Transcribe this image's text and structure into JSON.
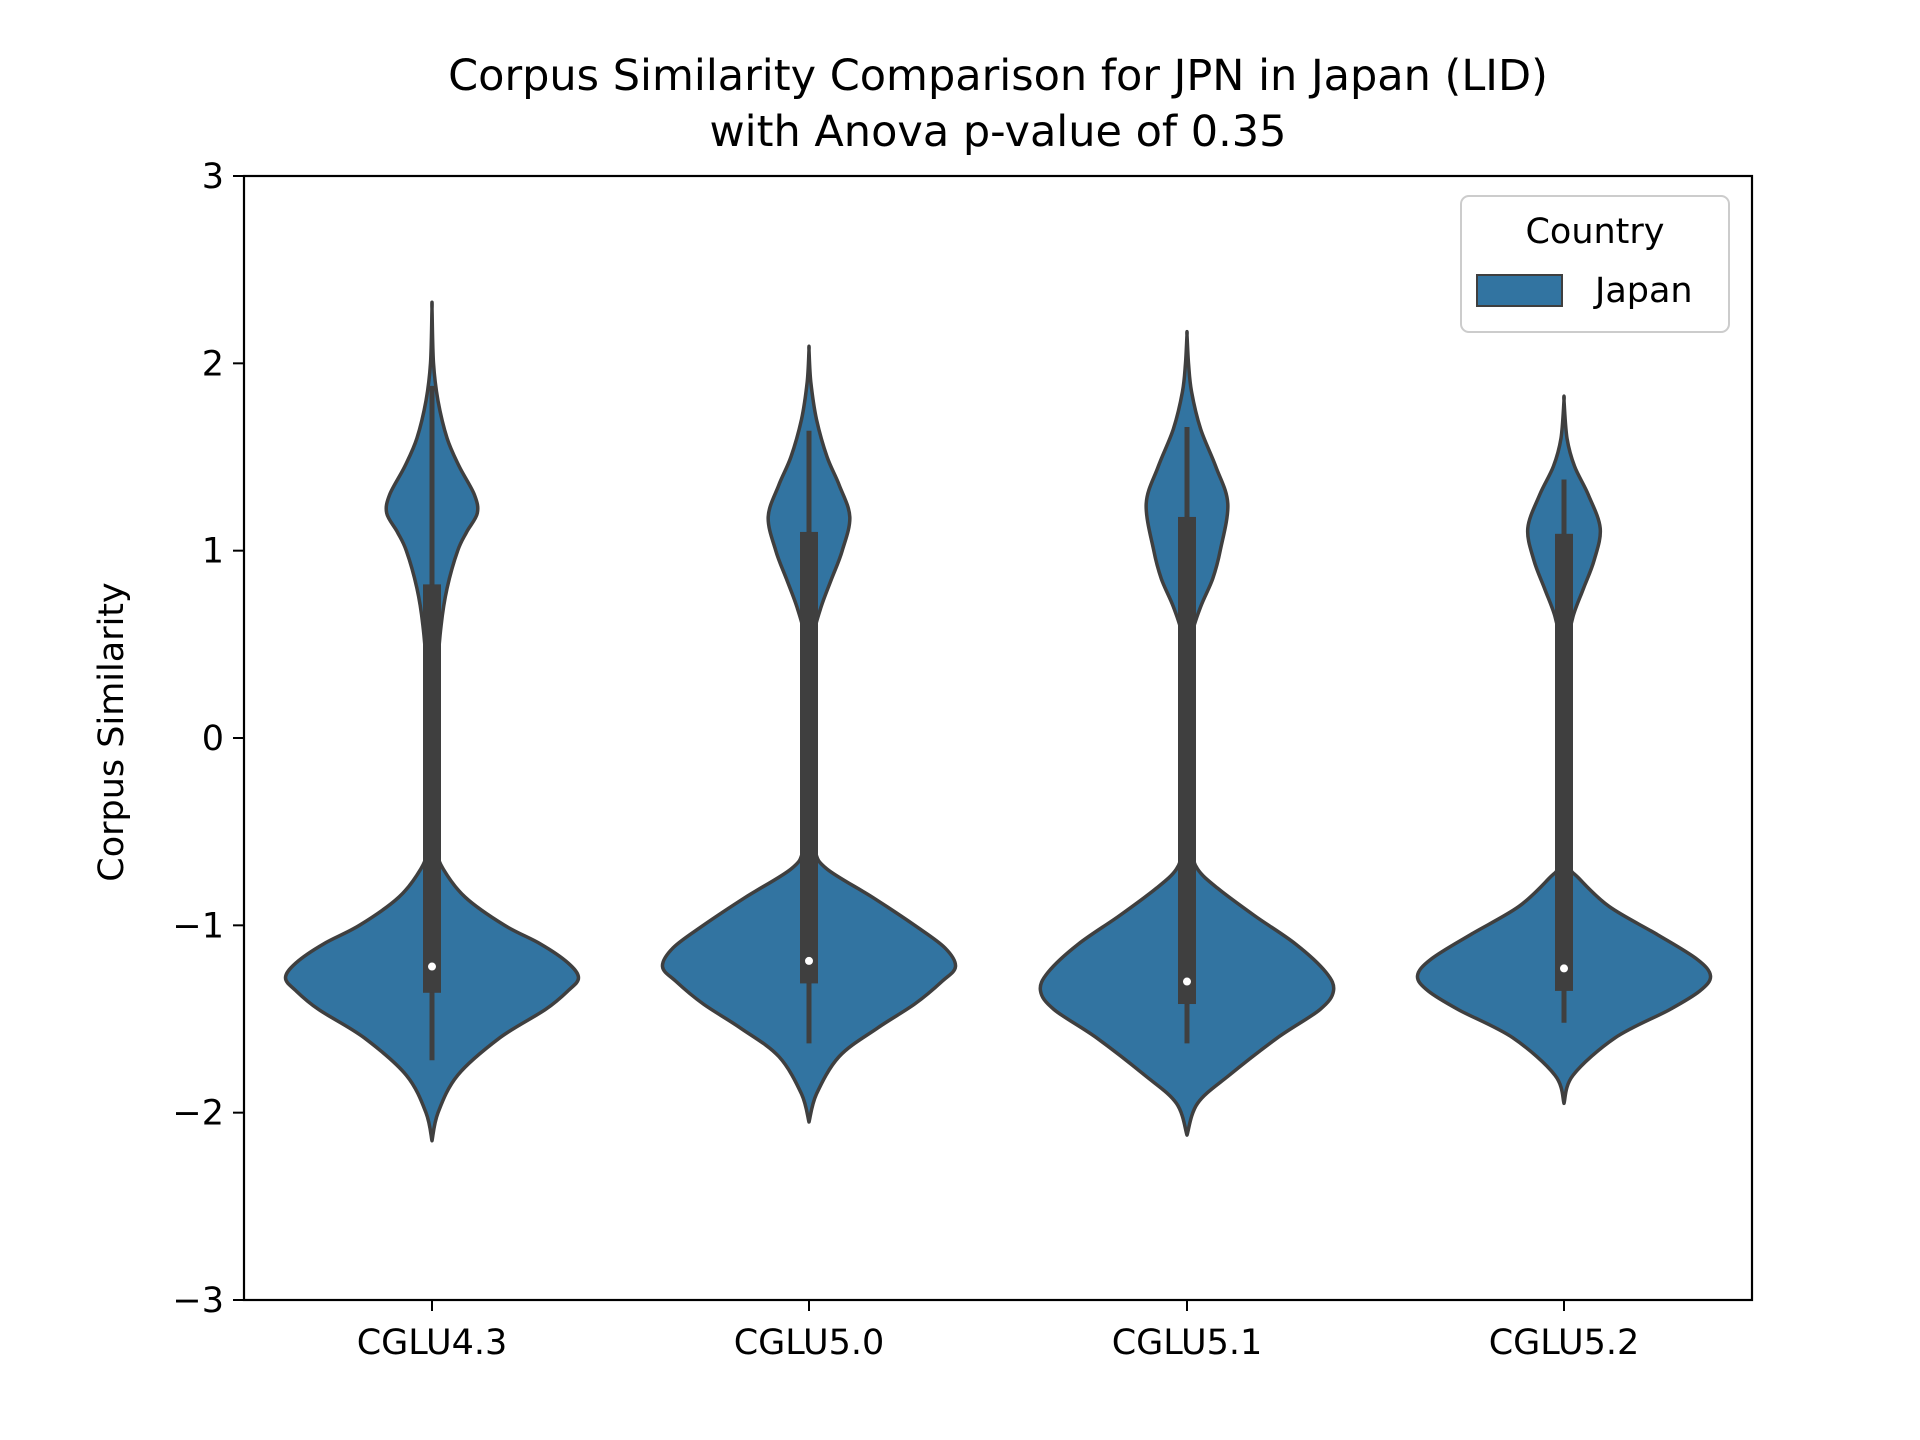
{
  "chart_data": {
    "type": "violin",
    "title_lines": [
      "Corpus Similarity Comparison for JPN in Japan (LID)",
      "with Anova p-value of 0.35"
    ],
    "xlabel": "",
    "ylabel": "Corpus Similarity",
    "ylim": [
      -3,
      3
    ],
    "yticks": [
      -3,
      -2,
      -1,
      0,
      1,
      2,
      3
    ],
    "ytick_labels": [
      "−3",
      "−2",
      "−1",
      "0",
      "1",
      "2",
      "3"
    ],
    "categories": [
      "CGLU4.3",
      "CGLU5.0",
      "CGLU5.1",
      "CGLU5.2"
    ],
    "legend": {
      "title": "Country",
      "entries": [
        {
          "label": "Japan",
          "color": "#3274a1"
        }
      ],
      "position": "top-right"
    },
    "violin_color": "#3274a1",
    "edge_color": "#3f3f3f",
    "violins": [
      {
        "category": "CGLU4.3",
        "density_y": [
          -2.15,
          -2.0,
          -1.8,
          -1.6,
          -1.45,
          -1.35,
          -1.28,
          -1.2,
          -1.1,
          -1.0,
          -0.85,
          -0.7,
          -0.6,
          -0.4,
          -0.2,
          0.0,
          0.3,
          0.6,
          0.8,
          1.0,
          1.1,
          1.2,
          1.3,
          1.45,
          1.6,
          1.8,
          2.0,
          2.29
        ],
        "density_hw": [
          0.0,
          0.04,
          0.17,
          0.45,
          0.75,
          0.9,
          0.97,
          0.9,
          0.72,
          0.48,
          0.22,
          0.075,
          0.035,
          0.025,
          0.024,
          0.024,
          0.03,
          0.06,
          0.1,
          0.17,
          0.23,
          0.3,
          0.28,
          0.18,
          0.1,
          0.04,
          0.01,
          0.0
        ],
        "whisker": [
          -1.72,
          1.88
        ],
        "q1": -1.36,
        "q3": 0.82,
        "median": -1.22
      },
      {
        "category": "CGLU5.0",
        "density_y": [
          -2.05,
          -1.9,
          -1.7,
          -1.55,
          -1.42,
          -1.3,
          -1.22,
          -1.12,
          -1.0,
          -0.85,
          -0.7,
          -0.6,
          -0.4,
          -0.2,
          0.0,
          0.2,
          0.4,
          0.55,
          0.7,
          0.85,
          1.0,
          1.18,
          1.35,
          1.5,
          1.7,
          1.9,
          2.07
        ],
        "density_hw": [
          0.0,
          0.05,
          0.2,
          0.45,
          0.7,
          0.88,
          0.97,
          0.9,
          0.7,
          0.42,
          0.12,
          0.04,
          0.025,
          0.022,
          0.022,
          0.022,
          0.024,
          0.03,
          0.08,
          0.15,
          0.22,
          0.27,
          0.2,
          0.12,
          0.05,
          0.012,
          0.0
        ],
        "whisker": [
          -1.63,
          1.64
        ],
        "q1": -1.31,
        "q3": 1.1,
        "median": -1.19
      },
      {
        "category": "CGLU5.1",
        "density_y": [
          -2.12,
          -1.95,
          -1.8,
          -1.6,
          -1.45,
          -1.35,
          -1.25,
          -1.1,
          -0.95,
          -0.8,
          -0.7,
          -0.6,
          -0.4,
          -0.2,
          0.0,
          0.2,
          0.4,
          0.55,
          0.7,
          0.85,
          1.0,
          1.25,
          1.45,
          1.65,
          1.85,
          2.0,
          2.15
        ],
        "density_hw": [
          0.0,
          0.07,
          0.28,
          0.6,
          0.88,
          0.97,
          0.92,
          0.72,
          0.45,
          0.2,
          0.07,
          0.035,
          0.025,
          0.024,
          0.024,
          0.024,
          0.026,
          0.032,
          0.09,
          0.17,
          0.22,
          0.27,
          0.19,
          0.09,
          0.03,
          0.01,
          0.0
        ],
        "whisker": [
          -1.63,
          1.66
        ],
        "q1": -1.42,
        "q3": 1.18,
        "median": -1.3
      },
      {
        "category": "CGLU5.2",
        "density_y": [
          -1.95,
          -1.8,
          -1.6,
          -1.45,
          -1.35,
          -1.27,
          -1.18,
          -1.05,
          -0.9,
          -0.75,
          -0.68,
          -0.5,
          -0.3,
          -0.1,
          0.1,
          0.3,
          0.5,
          0.65,
          0.8,
          0.95,
          1.12,
          1.3,
          1.45,
          1.6,
          1.8
        ],
        "density_hw": [
          0.0,
          0.06,
          0.34,
          0.7,
          0.9,
          0.97,
          0.88,
          0.62,
          0.3,
          0.1,
          0.035,
          0.024,
          0.022,
          0.022,
          0.022,
          0.022,
          0.026,
          0.06,
          0.13,
          0.2,
          0.24,
          0.16,
          0.07,
          0.02,
          0.0
        ],
        "whisker": [
          -1.52,
          1.38
        ],
        "q1": -1.35,
        "q3": 1.09,
        "median": -1.23
      }
    ]
  }
}
